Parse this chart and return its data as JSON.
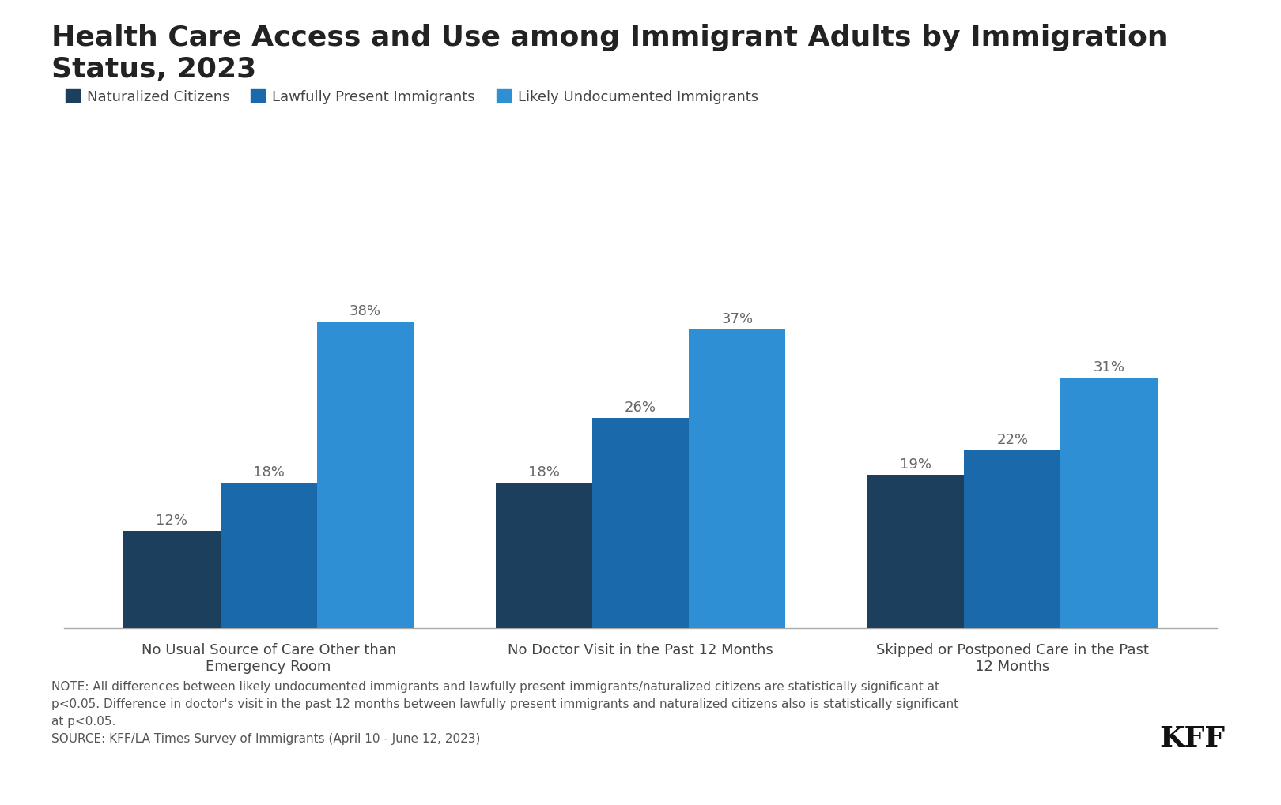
{
  "title": "Health Care Access and Use among Immigrant Adults by Immigration\nStatus, 2023",
  "categories": [
    "No Usual Source of Care Other than\nEmergency Room",
    "No Doctor Visit in the Past 12 Months",
    "Skipped or Postponed Care in the Past\n12 Months"
  ],
  "series": {
    "Naturalized Citizens": [
      12,
      18,
      19
    ],
    "Lawfully Present Immigrants": [
      18,
      26,
      22
    ],
    "Likely Undocumented Immigrants": [
      38,
      37,
      31
    ]
  },
  "colors": {
    "Naturalized Citizens": "#1c3f5e",
    "Lawfully Present Immigrants": "#1a6aab",
    "Likely Undocumented Immigrants": "#2e8fd4"
  },
  "ylim": [
    0,
    45
  ],
  "note_text": "NOTE: All differences between likely undocumented immigrants and lawfully present immigrants/naturalized citizens are statistically significant at\np<0.05. Difference in doctor's visit in the past 12 months between lawfully present immigrants and naturalized citizens also is statistically significant\nat p<0.05.\nSOURCE: KFF/LA Times Survey of Immigrants (April 10 - June 12, 2023)",
  "kff_text": "KFF",
  "background_color": "#ffffff",
  "bar_width": 0.26,
  "title_fontsize": 26,
  "legend_fontsize": 13,
  "xtick_fontsize": 13,
  "label_fontsize": 13,
  "note_fontsize": 11,
  "kff_fontsize": 26
}
